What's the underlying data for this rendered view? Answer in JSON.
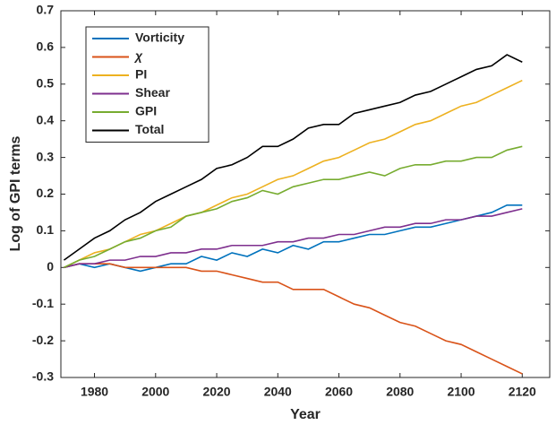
{
  "chart_data": {
    "type": "line",
    "xlabel": "Year",
    "ylabel": "Log of GPI terms",
    "x": [
      1970,
      1975,
      1980,
      1985,
      1990,
      1995,
      2000,
      2005,
      2010,
      2015,
      2020,
      2025,
      2030,
      2035,
      2040,
      2045,
      2050,
      2055,
      2060,
      2065,
      2070,
      2075,
      2080,
      2085,
      2090,
      2095,
      2100,
      2105,
      2110,
      2115,
      2120
    ],
    "series": [
      {
        "name": "Vorticity",
        "color": "#0072BD",
        "values": [
          0,
          0.01,
          0,
          0.01,
          0,
          -0.01,
          0,
          0.01,
          0.01,
          0.03,
          0.02,
          0.04,
          0.03,
          0.05,
          0.04,
          0.06,
          0.05,
          0.07,
          0.07,
          0.08,
          0.09,
          0.09,
          0.1,
          0.11,
          0.11,
          0.12,
          0.13,
          0.14,
          0.15,
          0.17,
          0.17
        ]
      },
      {
        "name": "χ",
        "color": "#D95319",
        "values": [
          0,
          0.01,
          0.01,
          0.01,
          0,
          0,
          0,
          0,
          0,
          -0.01,
          -0.01,
          -0.02,
          -0.03,
          -0.04,
          -0.04,
          -0.06,
          -0.06,
          -0.06,
          -0.08,
          -0.1,
          -0.11,
          -0.13,
          -0.15,
          -0.16,
          -0.18,
          -0.2,
          -0.21,
          -0.23,
          -0.25,
          -0.27,
          -0.29
        ]
      },
      {
        "name": "PI",
        "color": "#EDB120",
        "values": [
          0,
          0.02,
          0.04,
          0.05,
          0.07,
          0.09,
          0.1,
          0.12,
          0.14,
          0.15,
          0.17,
          0.19,
          0.2,
          0.22,
          0.24,
          0.25,
          0.27,
          0.29,
          0.3,
          0.32,
          0.34,
          0.35,
          0.37,
          0.39,
          0.4,
          0.42,
          0.44,
          0.45,
          0.47,
          0.49,
          0.51
        ]
      },
      {
        "name": "Shear",
        "color": "#7E2F8E",
        "values": [
          0,
          0.01,
          0.01,
          0.02,
          0.02,
          0.03,
          0.03,
          0.04,
          0.04,
          0.05,
          0.05,
          0.06,
          0.06,
          0.06,
          0.07,
          0.07,
          0.08,
          0.08,
          0.09,
          0.09,
          0.1,
          0.11,
          0.11,
          0.12,
          0.12,
          0.13,
          0.13,
          0.14,
          0.14,
          0.15,
          0.16
        ]
      },
      {
        "name": "GPI",
        "color": "#77AC30",
        "values": [
          0,
          0.02,
          0.03,
          0.05,
          0.07,
          0.08,
          0.1,
          0.11,
          0.14,
          0.15,
          0.16,
          0.18,
          0.19,
          0.21,
          0.2,
          0.22,
          0.23,
          0.24,
          0.24,
          0.25,
          0.26,
          0.25,
          0.27,
          0.28,
          0.28,
          0.29,
          0.29,
          0.3,
          0.3,
          0.32,
          0.33
        ]
      },
      {
        "name": "Total",
        "color": "#000000",
        "values": [
          0.02,
          0.05,
          0.08,
          0.1,
          0.13,
          0.15,
          0.18,
          0.2,
          0.22,
          0.24,
          0.27,
          0.28,
          0.3,
          0.33,
          0.33,
          0.35,
          0.38,
          0.39,
          0.39,
          0.42,
          0.43,
          0.44,
          0.45,
          0.47,
          0.48,
          0.5,
          0.52,
          0.54,
          0.55,
          0.58,
          0.56
        ]
      }
    ],
    "xlim": [
      1969,
      2129
    ],
    "ylim": [
      -0.3,
      0.7
    ],
    "xticks": [
      1980,
      2000,
      2020,
      2040,
      2060,
      2080,
      2100,
      2120
    ],
    "yticks": [
      -0.3,
      -0.2,
      -0.1,
      0,
      0.1,
      0.2,
      0.3,
      0.4,
      0.5,
      0.6,
      0.7
    ],
    "legend": "upper-left"
  }
}
